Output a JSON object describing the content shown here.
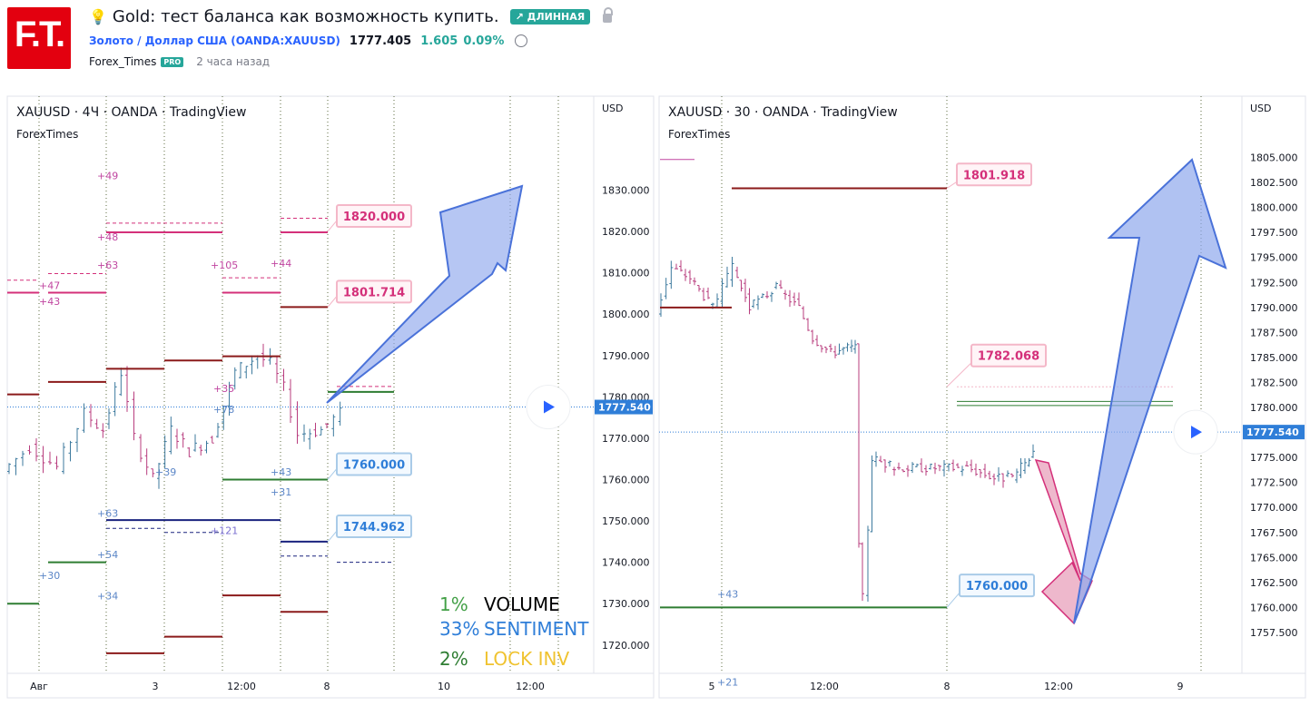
{
  "logo": {
    "text": "F.T."
  },
  "idea": {
    "title": "Gold: тест баланса как возможность купить.",
    "badge": "↗ ДЛИННАЯ",
    "symbol": "Золото / Доллар США (OANDA:XAUUSD)",
    "price": "1777.405",
    "change": "1.605",
    "change_pct": "0.09%",
    "author": "Forex_Times",
    "author_badge": "PRO",
    "time_ago": "2 часа назад"
  },
  "chart_data": [
    {
      "type": "line",
      "title": "XAUUSD · 4Ч · OANDA · TradingView",
      "watermark": "ForexTimes",
      "currency": "USD",
      "ylim": [
        1716,
        1838
      ],
      "y_ticks": [
        "1830.000",
        "1820.000",
        "1810.000",
        "1800.000",
        "1790.000",
        "1780.000",
        "1770.000",
        "1760.000",
        "1750.000",
        "1740.000",
        "1730.000",
        "1720.000"
      ],
      "x_ticks": [
        "Авг",
        "3",
        "12:00",
        "8",
        "10",
        "12:00"
      ],
      "last_price": "1777.540",
      "levels": [
        {
          "label": "1820.000",
          "value": 1820.0,
          "color": "#d4307a"
        },
        {
          "label": "1801.714",
          "value": 1801.714,
          "color": "#8b1a1a"
        },
        {
          "label": "1760.000",
          "value": 1760.0,
          "color": "#2e7d32"
        },
        {
          "label": "1744.962",
          "value": 1744.962,
          "color": "#1a237e"
        }
      ],
      "percent_annotations": [
        "+49",
        "+48",
        "+43",
        "+63",
        "+105",
        "+44",
        "+47",
        "+35",
        "+78",
        "+39",
        "+43",
        "+31",
        "+63",
        "+121",
        "+54",
        "+30",
        "+34"
      ],
      "stats": [
        {
          "pct": "1%",
          "label": "VOLUME",
          "pct_color": "#43a047",
          "label_color": "#000000"
        },
        {
          "pct": "33%",
          "label": "SENTIMENT",
          "pct_color": "#2f7ed8",
          "label_color": "#2f7ed8"
        },
        {
          "pct": "2%",
          "label": "LOCK INV",
          "pct_color": "#2e7d32",
          "label_color": "#f0c330"
        }
      ],
      "forecast": {
        "direction": "up",
        "target": 1820.0
      }
    },
    {
      "type": "line",
      "title": "XAUUSD · 30 · OANDA · TradingView",
      "watermark": "ForexTimes",
      "currency": "USD",
      "ylim": [
        1755.5,
        1807.5
      ],
      "y_ticks": [
        "1805.000",
        "1802.500",
        "1800.000",
        "1797.500",
        "1795.000",
        "1792.500",
        "1790.000",
        "1787.500",
        "1785.000",
        "1782.500",
        "1780.000",
        "1777.500",
        "1775.000",
        "1772.500",
        "1770.000",
        "1767.500",
        "1765.000",
        "1762.500",
        "1760.000",
        "1757.500"
      ],
      "x_ticks": [
        "5",
        "12:00",
        "8",
        "12:00",
        "9"
      ],
      "last_price": "1777.540",
      "levels": [
        {
          "label": "1801.918",
          "value": 1801.918,
          "color": "#8b1a1a"
        },
        {
          "label": "1782.068",
          "value": 1782.068,
          "color": "#d4307a"
        },
        {
          "label": "1760.000",
          "value": 1760.0,
          "color": "#2e7d32"
        }
      ],
      "percent_annotations": [
        "+43",
        "+21"
      ],
      "forecast": {
        "direction": "down-then-up",
        "low": 1760.0,
        "high": 1803.0
      }
    }
  ]
}
